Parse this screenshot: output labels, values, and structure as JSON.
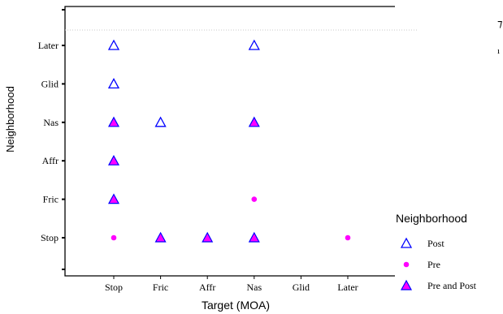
{
  "chart_data": {
    "type": "scatter",
    "title": "",
    "xlabel": "Target (MOA)",
    "ylabel": "Neighborhood",
    "x_categories": [
      "Stop",
      "Fric",
      "Affr",
      "Nas",
      "Glid",
      "Later"
    ],
    "y_categories": [
      "Stop",
      "Fric",
      "Affr",
      "Nas",
      "Glid",
      "Later"
    ],
    "grid": false,
    "legend_placement": "right",
    "legend_title": "Neighborhood",
    "series": [
      {
        "name": "Post",
        "marker": "triangle-open",
        "color": "#0000ff",
        "points": [
          {
            "x": "Stop",
            "y": "Later"
          },
          {
            "x": "Nas",
            "y": "Later"
          },
          {
            "x": "Stop",
            "y": "Glid"
          },
          {
            "x": "Fric",
            "y": "Nas"
          }
        ]
      },
      {
        "name": "Pre",
        "marker": "dot",
        "color": "#ff00ff",
        "points": [
          {
            "x": "Nas",
            "y": "Fric"
          },
          {
            "x": "Stop",
            "y": "Stop"
          },
          {
            "x": "Later",
            "y": "Stop"
          }
        ]
      },
      {
        "name": "Pre and Post",
        "marker": "triangle-filled",
        "color": "#ff00ff",
        "edge_color": "#0000ff",
        "points": [
          {
            "x": "Stop",
            "y": "Nas"
          },
          {
            "x": "Nas",
            "y": "Nas"
          },
          {
            "x": "Stop",
            "y": "Affr"
          },
          {
            "x": "Stop",
            "y": "Fric"
          },
          {
            "x": "Fric",
            "y": "Stop"
          },
          {
            "x": "Affr",
            "y": "Stop"
          },
          {
            "x": "Nas",
            "y": "Stop"
          }
        ]
      }
    ]
  }
}
